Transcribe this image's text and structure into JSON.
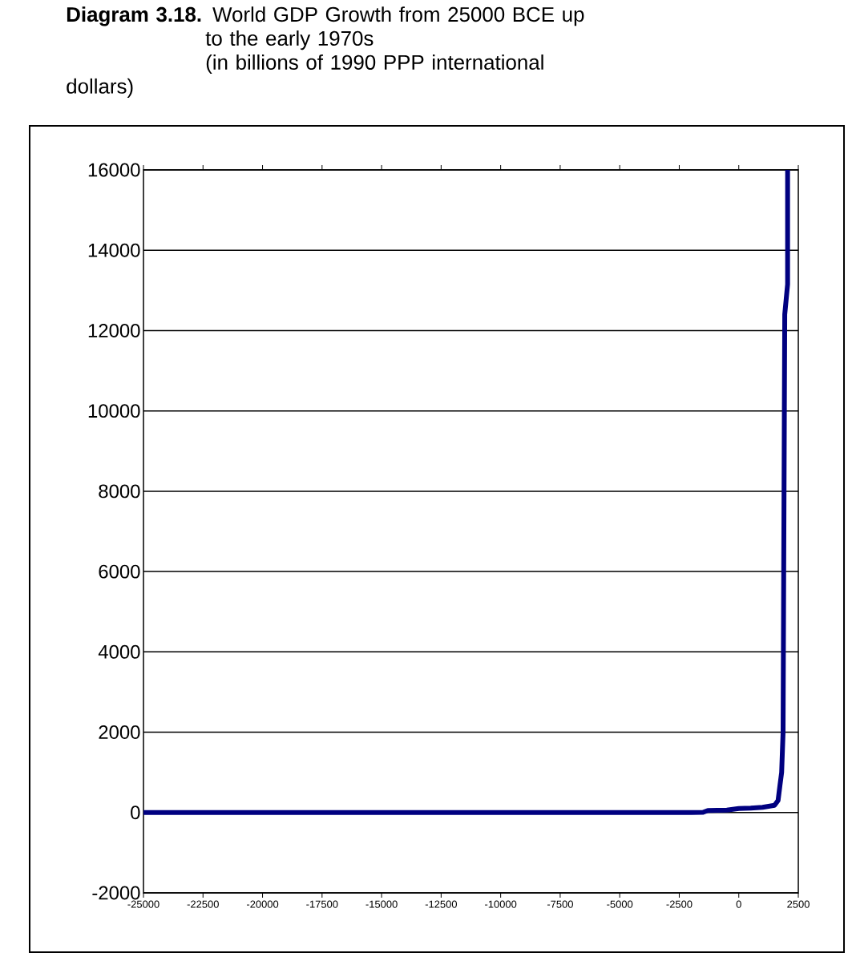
{
  "chart_data": {
    "type": "line",
    "title": "**Diagram 3.18.** World GDP Growth from 25000 BCE up to the early 1970s",
    "subtitle": "(in billions of 1990 PPP international dollars)",
    "x": [
      -25000,
      -10000,
      -2000,
      -1500,
      -1300,
      -500,
      0,
      500,
      1000,
      1500,
      1650,
      1730,
      1800,
      1860,
      1930,
      2050,
      2050
    ],
    "series": [
      {
        "color": "#000080",
        "values": [
          0,
          0,
          0,
          5,
          50,
          60,
          100,
          110,
          130,
          180,
          300,
          680,
          1000,
          2000,
          12400,
          13150,
          16000
        ]
      }
    ],
    "xlim": [
      -25000,
      2500
    ],
    "xticks": [
      -25000,
      -22500,
      -20000,
      -17500,
      -15000,
      -12500,
      -10000,
      -7500,
      -5000,
      -2500,
      0,
      2500
    ],
    "ylim": [
      -2000,
      16000
    ],
    "yticks": [
      -2000,
      0,
      2000,
      4000,
      6000,
      8000,
      10000,
      12000,
      14000,
      16000
    ],
    "grid": "y",
    "marker": "none",
    "line_style": "solid"
  }
}
